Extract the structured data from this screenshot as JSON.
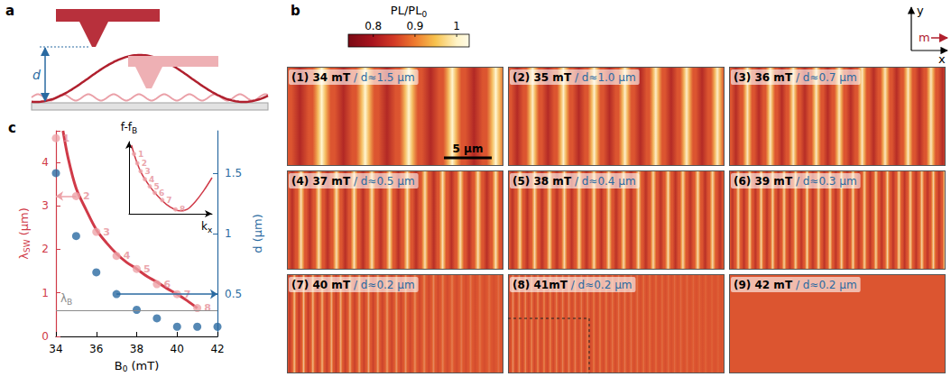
{
  "panel_a": {
    "letter": "a",
    "distance_label": "d"
  },
  "panel_b": {
    "letter": "b",
    "colorbar": {
      "label": [
        "PL/PL",
        {
          "sub": "0"
        }
      ],
      "range": [
        0.74,
        1.03
      ],
      "ticks": [
        0.8,
        0.9,
        1
      ]
    },
    "axes": {
      "y": "y",
      "m": "m",
      "x": "x"
    },
    "scale_bar": {
      "label": "5 μm",
      "length": 5
    },
    "images": [
      {
        "label": "(1) 34 mT",
        "d_label": "/ d≈1.5 μm"
      },
      {
        "label": "(2) 35 mT",
        "d_label": "/ d≈1.0 μm"
      },
      {
        "label": "(3) 36 mT",
        "d_label": "/ d≈0.7 μm"
      },
      {
        "label": "(4) 37 mT",
        "d_label": "/ d≈0.5 μm"
      },
      {
        "label": "(5) 38 mT",
        "d_label": "/ d≈0.4 μm"
      },
      {
        "label": "(6) 39 mT",
        "d_label": "/ d≈0.3 μm"
      },
      {
        "label": "(7) 40 mT",
        "d_label": "/ d≈0.2 μm"
      },
      {
        "label": "(8) 41mT",
        "d_label": "/ d≈0.2 μm"
      },
      {
        "label": "(9) 42 mT",
        "d_label": "/ d≈0.2 μm"
      }
    ]
  },
  "chart_data": {
    "letter": "c",
    "type": "scatter",
    "grid": false,
    "x_label": [
      "B",
      {
        "sub": "0"
      },
      " (mT)"
    ],
    "y_label": [
      "λ",
      {
        "sub": "SW"
      },
      " (μm)"
    ],
    "y2_label": [
      "d (μm)"
    ],
    "xlim": [
      34,
      42
    ],
    "xticks": [
      34,
      36,
      38,
      40,
      42
    ],
    "ylim": [
      0,
      4.72
    ],
    "yticks": [
      0,
      1,
      2,
      3,
      4
    ],
    "y2lim": [
      0.15,
      1.85
    ],
    "y2ticks": [
      0.5,
      1,
      1.5
    ],
    "series": [
      {
        "type": "line",
        "color": "#d03a48",
        "axis": "y",
        "x": [
          34.35,
          34.6,
          35,
          35.5,
          36,
          36.5,
          37,
          37.5,
          38,
          38.5,
          39,
          39.5,
          40,
          40.5,
          41
        ],
        "values": [
          4.72,
          4.1,
          3.4,
          2.9,
          2.45,
          2.15,
          1.9,
          1.7,
          1.55,
          1.38,
          1.25,
          1.1,
          0.97,
          0.82,
          0.65
        ]
      },
      {
        "type": "scatter",
        "color": "#eda2a8",
        "axis": "y",
        "x": [
          34,
          35,
          36,
          37,
          38,
          39,
          40,
          41
        ],
        "values": [
          4.55,
          3.22,
          2.4,
          1.85,
          1.55,
          1.2,
          0.97,
          0.65
        ],
        "point_labels": [
          "1",
          "2",
          "3",
          "4",
          "5",
          "6",
          "7",
          "8"
        ],
        "arrow_at": 35
      },
      {
        "type": "scatter",
        "color": "#2a6aa1",
        "axis": "y2",
        "x": [
          34,
          35,
          36,
          37,
          38,
          39,
          40,
          41,
          42
        ],
        "values": [
          1.5,
          0.98,
          0.68,
          0.5,
          0.37,
          0.3,
          0.23,
          0.23,
          0.23
        ],
        "arrow_at": 37
      }
    ],
    "reference_line": {
      "value": 0.6,
      "color": "#8c8c8c",
      "label": [
        "λ",
        {
          "sub": "B"
        }
      ]
    },
    "inset": {
      "type": "line",
      "tick_labels": false,
      "x_label": [
        "k",
        {
          "sub": "x"
        }
      ],
      "y_label": [
        "f-f",
        {
          "sub": "B"
        }
      ],
      "xlim": [
        0,
        10
      ],
      "ylim": [
        0,
        10
      ],
      "series": [
        {
          "type": "line",
          "color": "#d03a48",
          "x": [
            0.3,
            0.8,
            1.5,
            2.5,
            3.5,
            4.5,
            5.5,
            6.2,
            7,
            8,
            9,
            10
          ],
          "values": [
            9.5,
            7.6,
            5.6,
            3.8,
            2.4,
            1.3,
            0.6,
            0.4,
            0.6,
            1.7,
            3.2,
            5.0
          ]
        },
        {
          "type": "scatter",
          "color": "#eda2a8",
          "x": [
            0.6,
            1.0,
            1.4,
            1.9,
            2.5,
            3.1,
            4.0,
            5.6
          ],
          "values": [
            8.3,
            7.0,
            5.9,
            4.8,
            3.8,
            2.9,
            1.9,
            0.6
          ],
          "point_labels": [
            "1",
            "2",
            "3",
            "4",
            "5",
            "6",
            "7",
            "8"
          ]
        }
      ]
    }
  }
}
